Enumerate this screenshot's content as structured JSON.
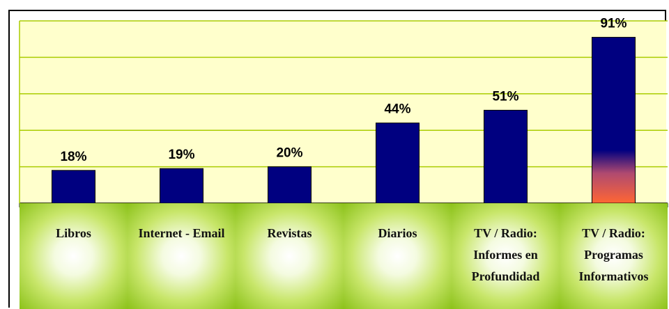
{
  "chart_data": {
    "type": "bar",
    "categories": [
      "Libros",
      "Internet - Email",
      "Revistas",
      "Diarios",
      "TV / Radio: Informes en Profundidad",
      "TV / Radio: Programas Informativos"
    ],
    "values": [
      18,
      19,
      20,
      44,
      51,
      91
    ],
    "value_labels": [
      "18%",
      "19%",
      "20%",
      "44%",
      "51%",
      "91%"
    ],
    "color": "#000080",
    "ylim": [
      0,
      100
    ],
    "yticks": [
      0,
      20,
      40,
      60,
      80,
      100
    ],
    "grid": true
  }
}
